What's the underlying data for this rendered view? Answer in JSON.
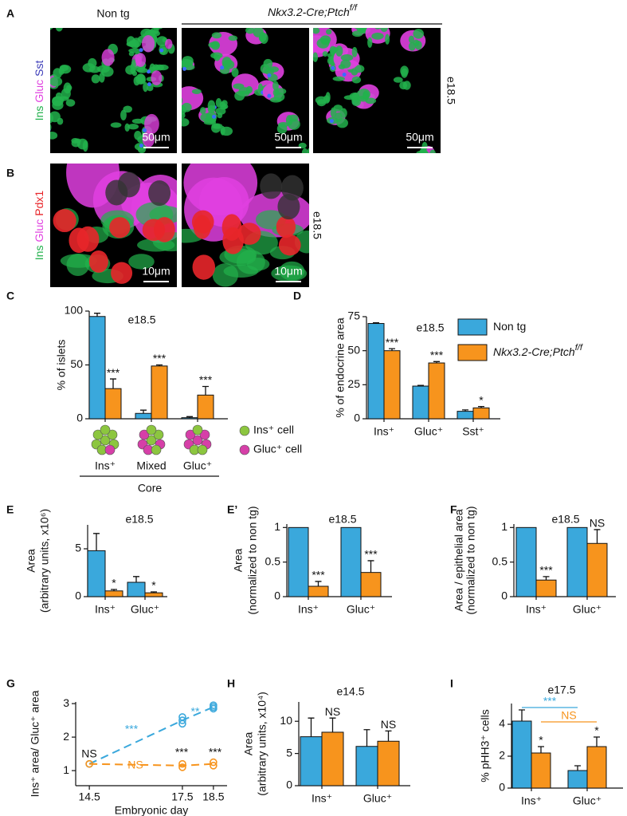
{
  "figure": {
    "A": {
      "letter": "A",
      "header": "Non tg",
      "genotype": "Nkx3.2-Cre;Ptch",
      "genotype_sup": "f/f",
      "channels": [
        {
          "name": "Ins",
          "color": "#22b14c"
        },
        {
          "name": "Gluc",
          "color": "#e040e0"
        },
        {
          "name": "Sst",
          "color": "#3a3ab8"
        }
      ],
      "stage": "e18.5",
      "scale_bars": [
        "50μm",
        "50μm",
        "50μm"
      ]
    },
    "B": {
      "letter": "B",
      "channels": [
        {
          "name": "Ins",
          "color": "#22b14c"
        },
        {
          "name": "Gluc",
          "color": "#e040e0"
        },
        {
          "name": "Pdx1",
          "color": "#e8262a"
        }
      ],
      "stage": "e18.5",
      "scale_bars": [
        "10μm",
        "10μm"
      ]
    }
  },
  "chart_data": [
    {
      "type": "bar",
      "panel": "C",
      "title": "e18.5",
      "ylabel": "% of islets",
      "categories": [
        "Ins⁺",
        "Mixed",
        "Gluc⁺"
      ],
      "ylim": [
        0,
        100
      ],
      "yticks": [
        0,
        50,
        100
      ],
      "series": [
        {
          "color": "#3aa8dc",
          "values": [
            95,
            5,
            1
          ],
          "errors": [
            3,
            3,
            1
          ]
        },
        {
          "color": "#f7941d",
          "values": [
            28,
            49,
            22
          ],
          "errors": [
            9,
            1,
            8
          ],
          "significance": [
            "***",
            "***",
            "***"
          ]
        }
      ],
      "legend_cells": [
        {
          "text": "Ins⁺ cell",
          "color": "#8cc63f"
        },
        {
          "text": "Gluc⁺ cell",
          "color": "#d63fa8"
        }
      ],
      "group_label": "Core"
    },
    {
      "type": "bar",
      "panel": "D",
      "title": "e18.5",
      "ylabel": "% of endocrine area",
      "categories": [
        "Ins⁺",
        "Gluc⁺",
        "Sst⁺"
      ],
      "ylim": [
        0,
        75
      ],
      "yticks": [
        0,
        25,
        50,
        75
      ],
      "series": [
        {
          "name": "Non tg",
          "color": "#3aa8dc",
          "values": [
            70,
            24,
            5.5
          ],
          "errors": [
            0.5,
            0.5,
            1
          ]
        },
        {
          "name": "Nkx3.2-Cre;Ptch",
          "name_sup": "f/f",
          "color": "#f7941d",
          "values": [
            50,
            41,
            8
          ],
          "errors": [
            1.5,
            1,
            1
          ],
          "significance": [
            "***",
            "***",
            "*"
          ]
        }
      ]
    },
    {
      "type": "bar",
      "panel": "E",
      "title": "e18.5",
      "ylabel": "Area",
      "ylabel_sub": "(arbitrary units, x10⁶)",
      "categories": [
        "Ins⁺",
        "Gluc⁺"
      ],
      "ylim": [
        0,
        7.5
      ],
      "yticks": [
        0,
        5
      ],
      "series": [
        {
          "color": "#3aa8dc",
          "values": [
            4.8,
            1.5
          ],
          "errors": [
            1.8,
            0.6
          ]
        },
        {
          "color": "#f7941d",
          "values": [
            0.6,
            0.4
          ],
          "errors": [
            0.15,
            0.1
          ],
          "significance": [
            "*",
            "*"
          ]
        }
      ]
    },
    {
      "type": "bar",
      "panel": "E’",
      "title": "e18.5",
      "ylabel": "Area",
      "ylabel_sub": "(normalized to non tg)",
      "categories": [
        "Ins⁺",
        "Gluc⁺"
      ],
      "ylim": [
        0,
        1.05
      ],
      "yticks": [
        0,
        0.5,
        1
      ],
      "series": [
        {
          "color": "#3aa8dc",
          "values": [
            1,
            1
          ]
        },
        {
          "color": "#f7941d",
          "values": [
            0.15,
            0.35
          ],
          "errors": [
            0.07,
            0.17
          ],
          "significance": [
            "***",
            "***"
          ]
        }
      ]
    },
    {
      "type": "bar",
      "panel": "F",
      "title": "e18.5",
      "ylabel": "Area / epithelial area",
      "ylabel_sub": "(normalized to non tg)",
      "categories": [
        "Ins⁺",
        "Gluc⁺"
      ],
      "ylim": [
        0,
        1.05
      ],
      "yticks": [
        0,
        0.5,
        1
      ],
      "series": [
        {
          "color": "#3aa8dc",
          "values": [
            1,
            1
          ]
        },
        {
          "color": "#f7941d",
          "values": [
            0.24,
            0.77
          ],
          "errors": [
            0.05,
            0.2
          ],
          "significance": [
            "***",
            "NS"
          ]
        }
      ]
    },
    {
      "type": "line",
      "panel": "G",
      "ylabel": "Ins⁺ area/ Gluc⁺ area",
      "xlabel": "Embryonic day",
      "xlim": [
        14.06,
        18.94
      ],
      "xticks": [
        14.5,
        17.5,
        18.5
      ],
      "ylim": [
        0.55,
        3.05
      ],
      "yticks": [
        1,
        2,
        3
      ],
      "series": [
        {
          "color": "#3aa8dc",
          "x": [
            14.5,
            17.5,
            18.5
          ],
          "values": [
            1.2,
            2.5,
            2.9
          ],
          "replicates": [
            [
              1.2
            ],
            [
              2.4,
              2.5,
              2.6
            ],
            [
              2.85,
              2.9,
              2.95
            ]
          ]
        },
        {
          "color": "#f7941d",
          "x": [
            14.5,
            17.5,
            18.5
          ],
          "values": [
            1.2,
            1.15,
            1.2
          ],
          "replicates": [
            [
              1.2
            ],
            [
              1.1,
              1.2
            ],
            [
              1.15,
              1.25
            ]
          ]
        }
      ],
      "annotations": [
        {
          "text": "NS"
        },
        {
          "text": "***",
          "color": "#3aa8dc"
        },
        {
          "text": "**",
          "color": "#3aa8dc"
        },
        {
          "text": "NS",
          "color": "#f7941d"
        },
        {
          "text": "***"
        },
        {
          "text": "***"
        }
      ]
    },
    {
      "type": "bar",
      "panel": "H",
      "title": "e14.5",
      "ylabel": "Area",
      "ylabel_sub": "(arbitrary units, x10⁴)",
      "categories": [
        "Ins⁺",
        "Gluc⁺"
      ],
      "ylim": [
        0,
        13
      ],
      "yticks": [
        0,
        5,
        10
      ],
      "series": [
        {
          "color": "#3aa8dc",
          "values": [
            7.6,
            6.1
          ],
          "errors": [
            2.9,
            2.6
          ]
        },
        {
          "color": "#f7941d",
          "values": [
            8.3,
            6.9
          ],
          "errors": [
            2.2,
            1.6
          ],
          "significance": [
            "NS",
            "NS"
          ]
        }
      ]
    },
    {
      "type": "bar",
      "panel": "I",
      "title": "e17.5",
      "ylabel": "% pHH3⁺ cells",
      "categories": [
        "Ins⁺",
        "Gluc⁺"
      ],
      "ylim": [
        0,
        5.3
      ],
      "yticks": [
        0,
        2,
        4
      ],
      "series": [
        {
          "color": "#3aa8dc",
          "values": [
            4.2,
            1.1
          ],
          "errors": [
            0.7,
            0.3
          ]
        },
        {
          "color": "#f7941d",
          "values": [
            2.2,
            2.6
          ],
          "errors": [
            0.4,
            0.6
          ],
          "significance": [
            "*",
            "*"
          ]
        }
      ],
      "brackets": [
        {
          "text": "***",
          "color": "#3aa8dc"
        },
        {
          "text": "NS",
          "color": "#f7941d"
        }
      ]
    }
  ]
}
